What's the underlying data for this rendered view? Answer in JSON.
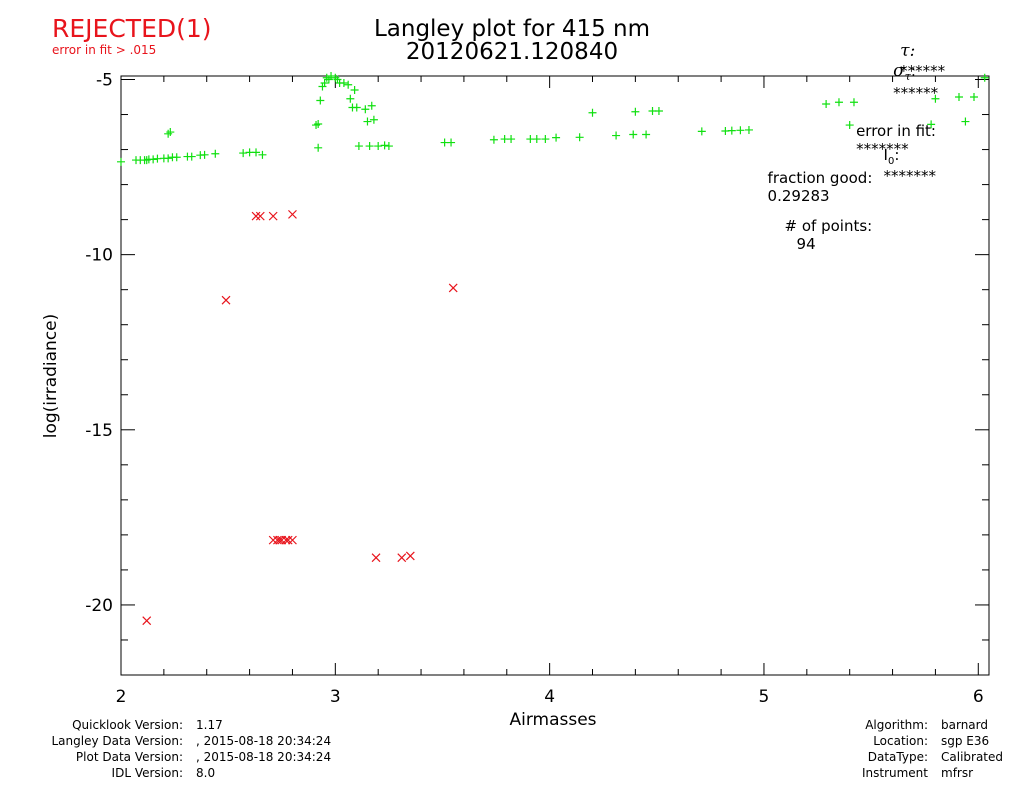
{
  "status": {
    "label": "REJECTED(1)",
    "reason": "error in fit > .015"
  },
  "header": {
    "title_line1": "Langley plot for 415 nm",
    "title_line2": "20120621.120840",
    "tau_label": "τ:",
    "tau_value": "******",
    "sigma_label": "σ",
    "sigma_sub": "τ",
    "sigma_value": "******"
  },
  "fit_info": {
    "error_label": "error in fit:",
    "error_value": "*******",
    "i0_label": "I",
    "i0_sub": "0",
    "i0_value": "*******",
    "fraction_label": "fraction good:",
    "fraction_value": "0.29283",
    "points_label": "# of points:",
    "points_value": "94"
  },
  "footer_left": [
    {
      "label": "Quicklook Version:",
      "value": "1.17"
    },
    {
      "label": "Langley Data Version:",
      "value": ", 2015-08-18 20:34:24"
    },
    {
      "label": "Plot Data Version:",
      "value": ", 2015-08-18 20:34:24"
    },
    {
      "label": "IDL Version:",
      "value": "8.0"
    }
  ],
  "footer_right": [
    {
      "label": "Algorithm:",
      "value": "barnard"
    },
    {
      "label": "Location:",
      "value": "sgp E36"
    },
    {
      "label": "DataType:",
      "value": "Calibrated"
    },
    {
      "label": "Instrument",
      "value": "mfrsr"
    }
  ],
  "colors": {
    "good": "#10e010",
    "rejected": "#e8141c",
    "status": "#e8141c",
    "axis": "#000000"
  },
  "chart_data": {
    "type": "scatter",
    "xlabel": "Airmasses",
    "ylabel": "log(irradiance)",
    "xlim": [
      2,
      6.05
    ],
    "ylim": [
      -22,
      -4.9
    ],
    "x_ticks": [
      2,
      3,
      4,
      5,
      6
    ],
    "y_ticks": [
      -20,
      -15,
      -10,
      -5
    ],
    "x_minor_step": 0.2,
    "y_minor_step": 1,
    "grid": false,
    "series": [
      {
        "marker": "plus",
        "points": [
          [
            2.0,
            -7.35
          ],
          [
            2.07,
            -7.3
          ],
          [
            2.09,
            -7.3
          ],
          [
            2.11,
            -7.3
          ],
          [
            2.12,
            -7.3
          ],
          [
            2.13,
            -7.28
          ],
          [
            2.15,
            -7.28
          ],
          [
            2.17,
            -7.26
          ],
          [
            2.2,
            -7.25
          ],
          [
            2.22,
            -7.25
          ],
          [
            2.24,
            -7.22
          ],
          [
            2.26,
            -7.22
          ],
          [
            2.22,
            -6.55
          ],
          [
            2.23,
            -6.5
          ],
          [
            2.31,
            -7.2
          ],
          [
            2.33,
            -7.2
          ],
          [
            2.37,
            -7.16
          ],
          [
            2.39,
            -7.15
          ],
          [
            2.44,
            -7.12
          ],
          [
            2.57,
            -7.1
          ],
          [
            2.6,
            -7.08
          ],
          [
            2.63,
            -7.08
          ],
          [
            2.66,
            -7.15
          ],
          [
            2.91,
            -6.3
          ],
          [
            2.92,
            -6.27
          ],
          [
            2.92,
            -6.95
          ],
          [
            2.93,
            -5.6
          ],
          [
            2.94,
            -5.2
          ],
          [
            2.95,
            -5.1
          ],
          [
            2.96,
            -4.95
          ],
          [
            2.97,
            -5.0
          ],
          [
            2.98,
            -4.9
          ],
          [
            3.0,
            -4.95
          ],
          [
            3.01,
            -5.0
          ],
          [
            3.02,
            -5.1
          ],
          [
            3.04,
            -5.1
          ],
          [
            3.06,
            -5.15
          ],
          [
            3.07,
            -5.55
          ],
          [
            3.08,
            -5.8
          ],
          [
            3.09,
            -5.3
          ],
          [
            3.1,
            -5.8
          ],
          [
            3.11,
            -6.9
          ],
          [
            3.14,
            -5.85
          ],
          [
            3.15,
            -6.2
          ],
          [
            3.16,
            -6.9
          ],
          [
            3.17,
            -5.75
          ],
          [
            3.18,
            -6.15
          ],
          [
            3.2,
            -6.9
          ],
          [
            3.23,
            -6.88
          ],
          [
            3.25,
            -6.9
          ],
          [
            3.51,
            -6.8
          ],
          [
            3.54,
            -6.8
          ],
          [
            3.74,
            -6.72
          ],
          [
            3.79,
            -6.7
          ],
          [
            3.82,
            -6.7
          ],
          [
            3.91,
            -6.7
          ],
          [
            3.94,
            -6.7
          ],
          [
            3.98,
            -6.7
          ],
          [
            4.03,
            -6.66
          ],
          [
            4.14,
            -6.65
          ],
          [
            4.2,
            -5.95
          ],
          [
            4.31,
            -6.6
          ],
          [
            4.39,
            -6.57
          ],
          [
            4.4,
            -5.92
          ],
          [
            4.45,
            -6.57
          ],
          [
            4.48,
            -5.9
          ],
          [
            4.51,
            -5.9
          ],
          [
            4.71,
            -6.48
          ],
          [
            4.82,
            -6.47
          ],
          [
            4.85,
            -6.46
          ],
          [
            4.89,
            -6.45
          ],
          [
            4.93,
            -6.44
          ],
          [
            5.29,
            -5.7
          ],
          [
            5.35,
            -5.65
          ],
          [
            5.4,
            -6.3
          ],
          [
            5.42,
            -5.65
          ],
          [
            5.78,
            -6.28
          ],
          [
            5.8,
            -5.55
          ],
          [
            5.91,
            -5.5
          ],
          [
            5.94,
            -6.2
          ],
          [
            5.98,
            -5.5
          ],
          [
            6.03,
            -4.95
          ]
        ]
      },
      {
        "marker": "cross",
        "points": [
          [
            2.12,
            -20.45
          ],
          [
            2.49,
            -11.3
          ],
          [
            2.63,
            -8.9
          ],
          [
            2.65,
            -8.9
          ],
          [
            2.71,
            -8.9
          ],
          [
            2.8,
            -8.85
          ],
          [
            3.55,
            -10.95
          ],
          [
            2.71,
            -18.15
          ],
          [
            2.73,
            -18.15
          ],
          [
            2.74,
            -18.15
          ],
          [
            2.75,
            -18.15
          ],
          [
            2.77,
            -18.15
          ],
          [
            2.78,
            -18.15
          ],
          [
            2.8,
            -18.15
          ],
          [
            3.19,
            -18.65
          ],
          [
            3.31,
            -18.65
          ],
          [
            3.35,
            -18.6
          ]
        ]
      }
    ]
  }
}
